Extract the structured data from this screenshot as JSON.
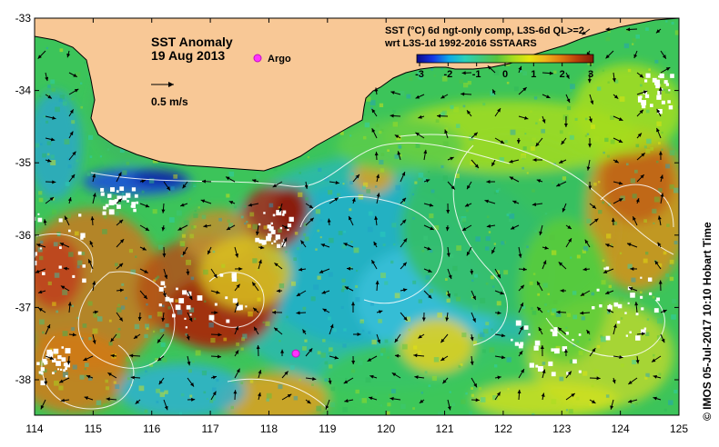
{
  "title": {
    "line1": "SST Anomaly",
    "line2": "19 Aug 2013"
  },
  "legend": {
    "argo_label": "Argo",
    "argo_color": "#ff33ff",
    "velocity_scale_label": "0.5 m/s"
  },
  "colorbar": {
    "title_line1": "SST (°C) 6d ngt-only comp, L3S-6d QL>=2",
    "title_line2": "wrt L3S-1d 1992-2016 SSTAARS",
    "ticks": [
      "-3",
      "-2",
      "-1",
      "0",
      "1",
      "2",
      "3"
    ],
    "min": -3,
    "max": 3,
    "colors": [
      "#0b0a8a",
      "#1436e6",
      "#0fa9e6",
      "#2ad0b8",
      "#3fc87a",
      "#57c43e",
      "#a6dd1e",
      "#e6e60e",
      "#f2b21c",
      "#e07a10",
      "#b83e0a",
      "#801a0a"
    ]
  },
  "axes": {
    "lon_ticks": [
      "114",
      "115",
      "116",
      "117",
      "118",
      "119",
      "120",
      "121",
      "122",
      "123",
      "124",
      "125"
    ],
    "lat_ticks": [
      "-33",
      "-34",
      "-35",
      "-36",
      "-37",
      "-38"
    ],
    "lon_range": [
      114,
      125
    ],
    "lat_range": [
      -33,
      -38.5
    ]
  },
  "credit": "© IMOS 05-Jul-2017 10:10 Hobart Time",
  "colors": {
    "land": "#f8c896",
    "ocean_base": "#3cc45a"
  },
  "argo_floats": [
    {
      "lon": 117.9,
      "lat": -37.7
    }
  ]
}
